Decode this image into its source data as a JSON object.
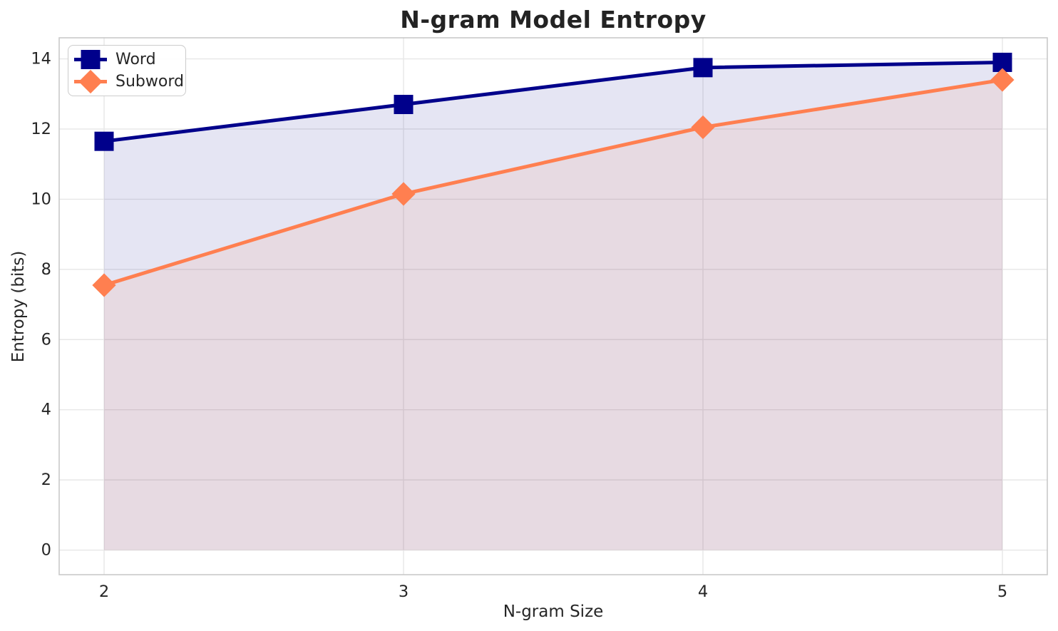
{
  "figure": {
    "background_color": "#ffffff"
  },
  "chart_data": {
    "type": "line",
    "title": "N-gram Model Entropy",
    "xlabel": "N-gram Size",
    "ylabel": "Entropy (bits)",
    "x": [
      2,
      3,
      4,
      5
    ],
    "series": [
      {
        "name": "Word",
        "values": [
          11.65,
          12.7,
          13.75,
          13.9
        ],
        "color": "#00008B",
        "marker": "square"
      },
      {
        "name": "Subword",
        "values": [
          7.55,
          10.15,
          12.05,
          13.4
        ],
        "color": "#FF7F50",
        "marker": "diamond"
      }
    ],
    "fill_to_zero": true,
    "fill_opacity": 0.1,
    "line_width": 5,
    "xlim": [
      1.85,
      5.15
    ],
    "ylim": [
      -0.7,
      14.6
    ],
    "xticks": [
      2,
      3,
      4,
      5
    ],
    "yticks": [
      0,
      2,
      4,
      6,
      8,
      10,
      12,
      14
    ],
    "grid": true,
    "grid_color": "#e7e7e7",
    "spine_color": "#c9c9c9",
    "text_color": "#262626",
    "legend": {
      "position": "upper-left",
      "labels": [
        "Word",
        "Subword"
      ]
    }
  }
}
